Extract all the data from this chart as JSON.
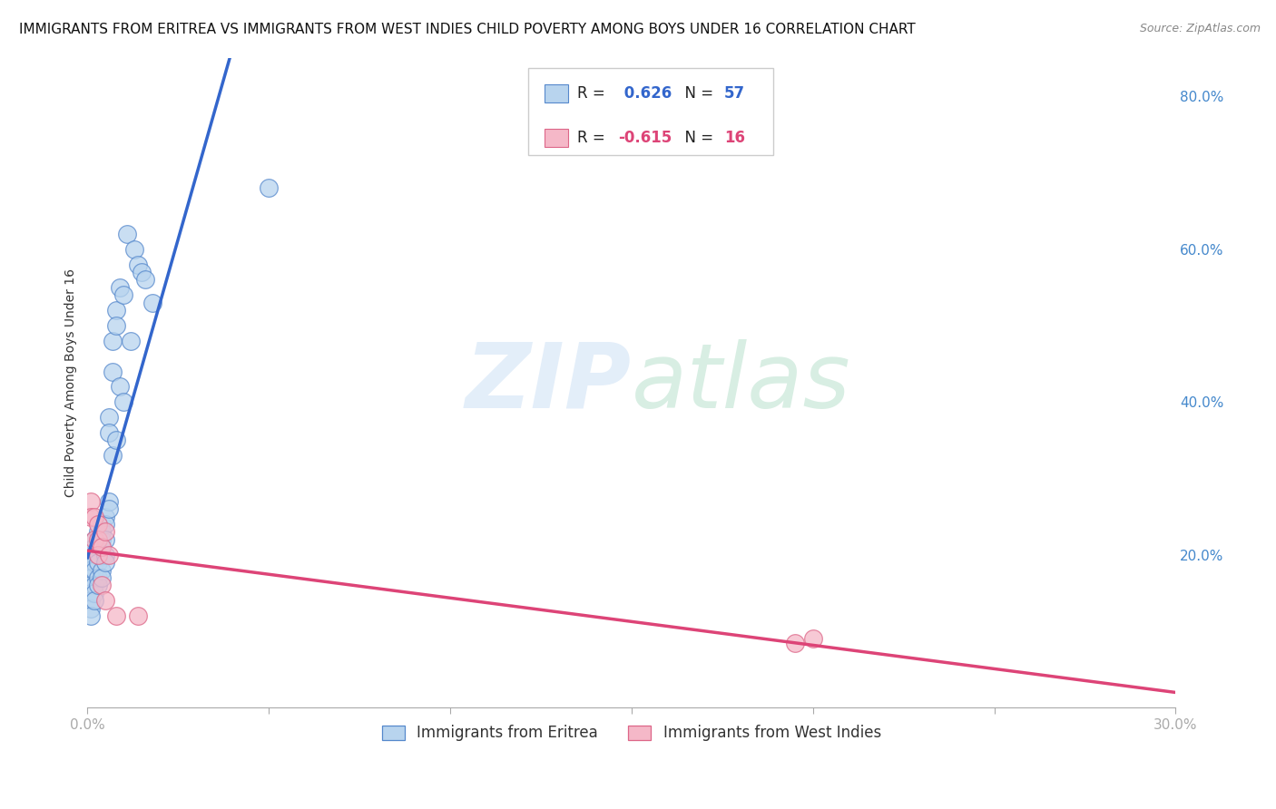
{
  "title": "IMMIGRANTS FROM ERITREA VS IMMIGRANTS FROM WEST INDIES CHILD POVERTY AMONG BOYS UNDER 16 CORRELATION CHART",
  "source": "Source: ZipAtlas.com",
  "ylabel": "Child Poverty Among Boys Under 16",
  "xlim": [
    0.0,
    0.3
  ],
  "ylim": [
    0.0,
    0.85
  ],
  "x_ticks": [
    0.0,
    0.05,
    0.1,
    0.15,
    0.2,
    0.25,
    0.3
  ],
  "x_tick_labels": [
    "0.0%",
    "",
    "",
    "",
    "",
    "",
    "30.0%"
  ],
  "y_ticks_right": [
    0.0,
    0.2,
    0.4,
    0.6,
    0.8
  ],
  "y_tick_labels_right": [
    "",
    "20.0%",
    "40.0%",
    "60.0%",
    "80.0%"
  ],
  "color_eritrea_face": "#b8d4ee",
  "color_eritrea_edge": "#5588cc",
  "color_eritrea_line": "#3366cc",
  "color_wi_face": "#f5b8c8",
  "color_wi_edge": "#dd6688",
  "color_wi_line": "#dd4477",
  "R_eritrea": 0.626,
  "N_eritrea": 57,
  "R_westindies": -0.615,
  "N_westindies": 16,
  "eritrea_x": [
    0.001,
    0.001,
    0.001,
    0.001,
    0.001,
    0.001,
    0.001,
    0.001,
    0.001,
    0.002,
    0.002,
    0.002,
    0.002,
    0.002,
    0.002,
    0.002,
    0.002,
    0.003,
    0.003,
    0.003,
    0.003,
    0.003,
    0.003,
    0.003,
    0.004,
    0.004,
    0.004,
    0.004,
    0.004,
    0.004,
    0.005,
    0.005,
    0.005,
    0.005,
    0.005,
    0.006,
    0.006,
    0.006,
    0.006,
    0.007,
    0.007,
    0.007,
    0.008,
    0.008,
    0.008,
    0.009,
    0.009,
    0.01,
    0.01,
    0.011,
    0.012,
    0.013,
    0.014,
    0.015,
    0.016,
    0.018,
    0.05
  ],
  "eritrea_y": [
    0.2,
    0.19,
    0.18,
    0.17,
    0.16,
    0.15,
    0.14,
    0.13,
    0.12,
    0.22,
    0.21,
    0.2,
    0.19,
    0.18,
    0.16,
    0.15,
    0.14,
    0.23,
    0.22,
    0.21,
    0.2,
    0.19,
    0.17,
    0.16,
    0.24,
    0.23,
    0.22,
    0.21,
    0.18,
    0.17,
    0.25,
    0.24,
    0.22,
    0.2,
    0.19,
    0.38,
    0.36,
    0.27,
    0.26,
    0.48,
    0.44,
    0.33,
    0.52,
    0.5,
    0.35,
    0.55,
    0.42,
    0.54,
    0.4,
    0.62,
    0.48,
    0.6,
    0.58,
    0.57,
    0.56,
    0.53,
    0.68
  ],
  "westindies_x": [
    0.001,
    0.001,
    0.002,
    0.002,
    0.003,
    0.003,
    0.003,
    0.004,
    0.004,
    0.005,
    0.005,
    0.006,
    0.008,
    0.195,
    0.2
  ],
  "westindies_y": [
    0.27,
    0.25,
    0.25,
    0.22,
    0.24,
    0.22,
    0.2,
    0.21,
    0.16,
    0.23,
    0.14,
    0.2,
    0.12,
    0.085,
    0.09
  ],
  "wi_extra_x": [
    0.014
  ],
  "wi_extra_y": [
    0.12
  ],
  "watermark_zip": "ZIP",
  "watermark_atlas": "atlas",
  "watermark_color_zip": "#c8dff5",
  "watermark_color_atlas": "#c8e8d5",
  "background_color": "#ffffff",
  "grid_color": "#cccccc",
  "title_fontsize": 11,
  "axis_label_fontsize": 10,
  "tick_fontsize": 11,
  "legend_fontsize": 12
}
